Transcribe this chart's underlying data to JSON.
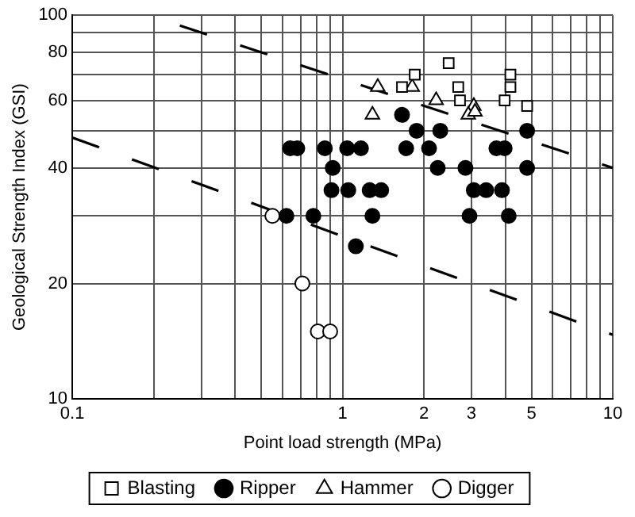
{
  "chart_data": {
    "type": "scatter",
    "xlabel": "Point load strength (MPa)",
    "ylabel": "Geological Strength Index (GSI)",
    "log": "xy",
    "grid": true,
    "legend": "bottom",
    "xlim": [
      0.1,
      10
    ],
    "ylim": [
      10,
      100
    ],
    "xticks": [
      0.1,
      {
        "value": 0.2,
        "label": null
      },
      {
        "value": 0.3,
        "label": null
      },
      {
        "value": 0.4,
        "label": null
      },
      {
        "value": 0.5,
        "label": null
      },
      {
        "value": 0.6,
        "label": null
      },
      {
        "value": 0.7,
        "label": null
      },
      {
        "value": 0.8,
        "label": null
      },
      {
        "value": 0.9,
        "label": null
      },
      1,
      2,
      3,
      {
        "value": 4,
        "label": null
      },
      5,
      {
        "value": 6,
        "label": null
      },
      {
        "value": 7,
        "label": null
      },
      {
        "value": 8,
        "label": null
      },
      {
        "value": 9,
        "label": null
      },
      10
    ],
    "yticks": [
      10,
      20,
      {
        "value": 30,
        "label": null
      },
      40,
      {
        "value": 50,
        "label": null
      },
      60,
      {
        "value": 70,
        "label": null
      },
      80,
      {
        "value": 90,
        "label": null
      },
      100
    ],
    "series": [
      {
        "name": "Blasting",
        "color": "#ffffff",
        "marker": "square",
        "x": [
          1.85,
          1.66,
          2.47,
          2.68,
          2.72,
          4.18,
          4.18,
          3.98,
          4.82
        ],
        "values": [
          70,
          65,
          75,
          65,
          60,
          70,
          65,
          60,
          58
        ]
      },
      {
        "name": "Ripper",
        "color": "#000000",
        "marker": "circle",
        "x": [
          1.66,
          1.88,
          2.3,
          0.64,
          0.68,
          0.86,
          1.04,
          1.17,
          1.72,
          2.09,
          3.71,
          3.98,
          4.82,
          0.92,
          2.25,
          2.85,
          4.82,
          0.91,
          1.05,
          1.26,
          1.39,
          3.06,
          3.4,
          3.89,
          0.62,
          0.78,
          1.29,
          2.95,
          4.12,
          1.12
        ],
        "values": [
          55,
          50,
          50,
          45,
          45,
          45,
          45,
          45,
          45,
          45,
          45,
          45,
          50,
          40,
          40,
          40,
          40,
          35,
          35,
          35,
          35,
          35,
          35,
          35,
          30,
          30,
          30,
          30,
          30,
          25
        ]
      },
      {
        "name": "Hammer",
        "color": "#ffffff",
        "marker": "triangle",
        "x": [
          1.35,
          1.81,
          1.29,
          2.22,
          3.06,
          2.92,
          3.09
        ],
        "values": [
          65,
          65,
          55,
          60,
          58,
          55,
          56
        ]
      },
      {
        "name": "Digger",
        "color": "#ffffff",
        "marker": "circle",
        "x": [
          0.55,
          0.71,
          0.81,
          0.9
        ],
        "values": [
          30,
          20,
          15,
          15
        ]
      },
      {
        "type": "line",
        "line_style": "dashed",
        "marker": "none",
        "color": "#000000",
        "x": [
          0.25,
          10
        ],
        "values": [
          94,
          40
        ]
      },
      {
        "type": "line",
        "line_style": "dashed",
        "marker": "none",
        "color": "#000000",
        "x": [
          0.1,
          10
        ],
        "values": [
          48,
          14.7
        ]
      }
    ]
  }
}
